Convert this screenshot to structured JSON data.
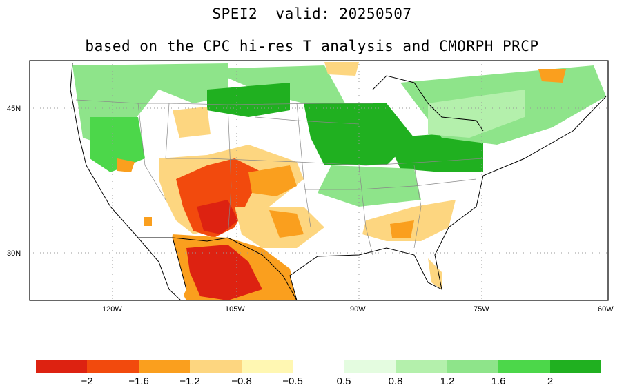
{
  "title": {
    "line1": "SPEI2  valid: 20250507",
    "line2": "based on the CPC hi-res T analysis and CMORPH PRCP"
  },
  "map": {
    "region": "Contiguous United States",
    "lat_labels": [
      "45N",
      "30N"
    ],
    "lon_labels": [
      "120W",
      "105W",
      "90W",
      "75W",
      "60W"
    ],
    "lon_range": [
      -127,
      -60
    ],
    "lat_range": [
      24,
      50
    ]
  },
  "colorbar": {
    "colors": [
      "#dd2211",
      "#f24a0d",
      "#fa9f1e",
      "#fdd680",
      "#fff7b2",
      "#ffffff",
      "#e4fce0",
      "#b4f0ac",
      "#8ee48a",
      "#4cd74a",
      "#20b020"
    ],
    "labels": [
      "−2",
      "−1.6",
      "−1.2",
      "−0.8",
      "−0.5",
      "0.5",
      "0.8",
      "1.2",
      "1.6",
      "2"
    ]
  }
}
